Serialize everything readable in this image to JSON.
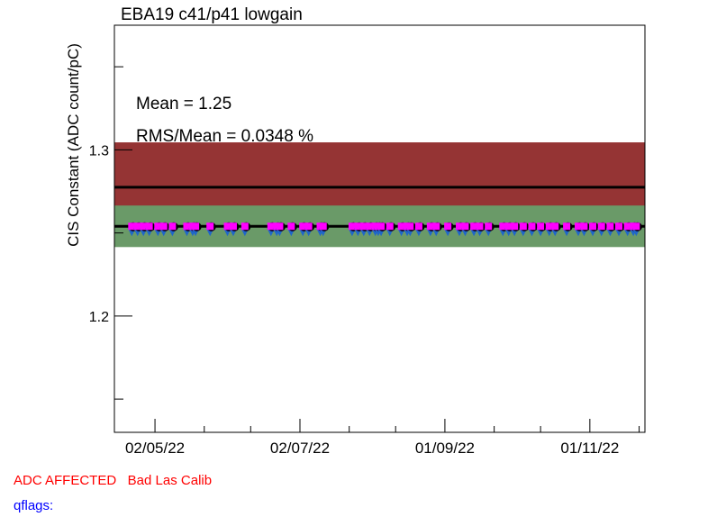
{
  "chart_data": {
    "type": "scatter",
    "title": "EBA19 c41/p41 lowgain",
    "xlabel": "",
    "ylabel": "CIS Constant (ADC count/pC)",
    "ylim": [
      1.13,
      1.375
    ],
    "xlim": [
      -14,
      169
    ],
    "y_ticks": [
      1.2,
      1.3
    ],
    "y_tick_labels": [
      "1.2",
      "1.3"
    ],
    "x_ticks": [
      0,
      50,
      100,
      150
    ],
    "x_tick_labels": [
      "02/05/22",
      "02/07/22",
      "01/09/22",
      "01/11/22"
    ],
    "x_minor_ticks": [
      17,
      33,
      67,
      83,
      117,
      133,
      167
    ],
    "mean_line": 1.254,
    "reference_line": 1.2775,
    "red_band": [
      1.2655,
      1.3045
    ],
    "green_band": [
      1.2415,
      1.2665
    ],
    "stats": {
      "mean": "Mean = 1.25",
      "rms": "RMS/Mean = 0.0348 %"
    },
    "series": [
      {
        "name": "CIS constant",
        "x": [
          -8,
          -6,
          -4,
          -2,
          1,
          3,
          6,
          11,
          13,
          14,
          19,
          25,
          27,
          31,
          40,
          42,
          43,
          47,
          51,
          53,
          57,
          58,
          68,
          70,
          72,
          74,
          76,
          77,
          78,
          81,
          85,
          87,
          88,
          91,
          95,
          97,
          101,
          105,
          107,
          110,
          112,
          115,
          120,
          122,
          124,
          127,
          130,
          133,
          136,
          138,
          142,
          146,
          148,
          151,
          154,
          157,
          160,
          163,
          165,
          166
        ],
        "values": [
          1.254,
          1.254,
          1.254,
          1.254,
          1.254,
          1.254,
          1.254,
          1.254,
          1.254,
          1.254,
          1.254,
          1.254,
          1.254,
          1.254,
          1.254,
          1.254,
          1.254,
          1.254,
          1.254,
          1.254,
          1.254,
          1.254,
          1.254,
          1.254,
          1.254,
          1.254,
          1.254,
          1.254,
          1.254,
          1.254,
          1.254,
          1.254,
          1.254,
          1.254,
          1.254,
          1.254,
          1.254,
          1.254,
          1.254,
          1.254,
          1.254,
          1.254,
          1.254,
          1.254,
          1.254,
          1.254,
          1.254,
          1.254,
          1.254,
          1.254,
          1.254,
          1.254,
          1.254,
          1.254,
          1.254,
          1.254,
          1.254,
          1.254,
          1.254,
          1.254
        ]
      }
    ]
  },
  "footer": {
    "status": "ADC AFFECTED   Bad Las Calib",
    "qflags": "qflags:"
  },
  "colors": {
    "red_band": "#953434",
    "green_band": "#6a9a68",
    "marker": "#ff00ff",
    "marker_shadow": "#1f66c9",
    "footer_red": "#ff0000",
    "footer_blue": "#0000ff"
  }
}
